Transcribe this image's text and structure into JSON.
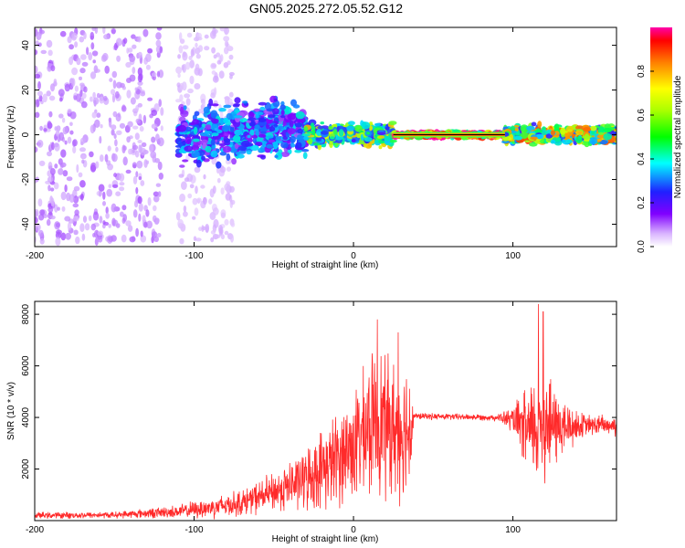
{
  "title": "GN05.2025.272.05.52.G12",
  "colors": {
    "snr_line": "#ff2a2a",
    "spectral_low": "#cc99ff",
    "spectral_mid": "#7000ff",
    "spectral_high": "#ff0000"
  },
  "chart_data": [
    {
      "type": "heatmap",
      "name": "spectrogram",
      "xlabel": "Height of straight line (km)",
      "ylabel": "Frequency (Hz)",
      "xlim": [
        -200,
        165
      ],
      "ylim": [
        -50,
        48
      ],
      "xticks": [
        -200,
        -100,
        0,
        100
      ],
      "yticks": [
        -40,
        -20,
        0,
        20,
        40
      ],
      "colorbar": {
        "label": "Normalized spectral amplitude",
        "range": [
          0.0,
          1.0
        ],
        "ticks": [
          "0.0",
          "0.2",
          "0.4",
          "0.6",
          "0.8"
        ]
      },
      "regions": [
        {
          "x_from": -200,
          "x_to": -120,
          "spread_hz": 48,
          "amplitude": 0.12,
          "note": "scattered noise"
        },
        {
          "x_from": -110,
          "x_to": -75,
          "spread_hz": 48,
          "amplitude": 0.06,
          "note": "faint noise"
        },
        {
          "x_from": -110,
          "x_to": -30,
          "spread_hz": 12,
          "amplitude": 0.35,
          "note": "broad band"
        },
        {
          "x_from": -30,
          "x_to": 25,
          "spread_hz": 5,
          "amplitude": 0.6,
          "note": "narrowing band"
        },
        {
          "x_from": 25,
          "x_to": 95,
          "spread_hz": 1,
          "amplitude": 1.0,
          "note": "strong carrier"
        },
        {
          "x_from": 95,
          "x_to": 165,
          "spread_hz": 4,
          "amplitude": 0.7,
          "note": "band with peaks"
        }
      ]
    },
    {
      "type": "line",
      "name": "snr",
      "xlabel": "Height of straight line (km)",
      "ylabel": "SNR (10 * v/v)",
      "xlim": [
        -200,
        165
      ],
      "ylim": [
        0,
        8500
      ],
      "xticks": [
        -200,
        -100,
        0,
        100
      ],
      "yticks": [
        2000,
        4000,
        6000,
        8000
      ],
      "envelope": [
        {
          "x": -200,
          "mean": 200,
          "amp": 150
        },
        {
          "x": -150,
          "mean": 220,
          "amp": 150
        },
        {
          "x": -110,
          "mean": 350,
          "amp": 300
        },
        {
          "x": -90,
          "mean": 500,
          "amp": 500
        },
        {
          "x": -70,
          "mean": 700,
          "amp": 600
        },
        {
          "x": -50,
          "mean": 1100,
          "amp": 900
        },
        {
          "x": -30,
          "mean": 1600,
          "amp": 1400
        },
        {
          "x": -10,
          "mean": 2400,
          "amp": 2200
        },
        {
          "x": 5,
          "mean": 3200,
          "amp": 2800
        },
        {
          "x": 15,
          "mean": 4000,
          "amp": 3400
        },
        {
          "x": 25,
          "mean": 3500,
          "amp": 3200
        },
        {
          "x": 36,
          "mean": 3600,
          "amp": 3000
        },
        {
          "x": 38,
          "mean": 4050,
          "amp": 150
        },
        {
          "x": 90,
          "mean": 4000,
          "amp": 150
        },
        {
          "x": 100,
          "mean": 3900,
          "amp": 600
        },
        {
          "x": 110,
          "mean": 3400,
          "amp": 2200
        },
        {
          "x": 120,
          "mean": 3800,
          "amp": 2800
        },
        {
          "x": 130,
          "mean": 3600,
          "amp": 1500
        },
        {
          "x": 145,
          "mean": 3700,
          "amp": 500
        },
        {
          "x": 165,
          "mean": 3700,
          "amp": 500
        }
      ],
      "peaks": [
        {
          "x": 15,
          "y": 7800
        },
        {
          "x": 28,
          "y": 7300
        },
        {
          "x": 116,
          "y": 8400
        },
        {
          "x": 119,
          "y": 8100
        }
      ]
    }
  ]
}
